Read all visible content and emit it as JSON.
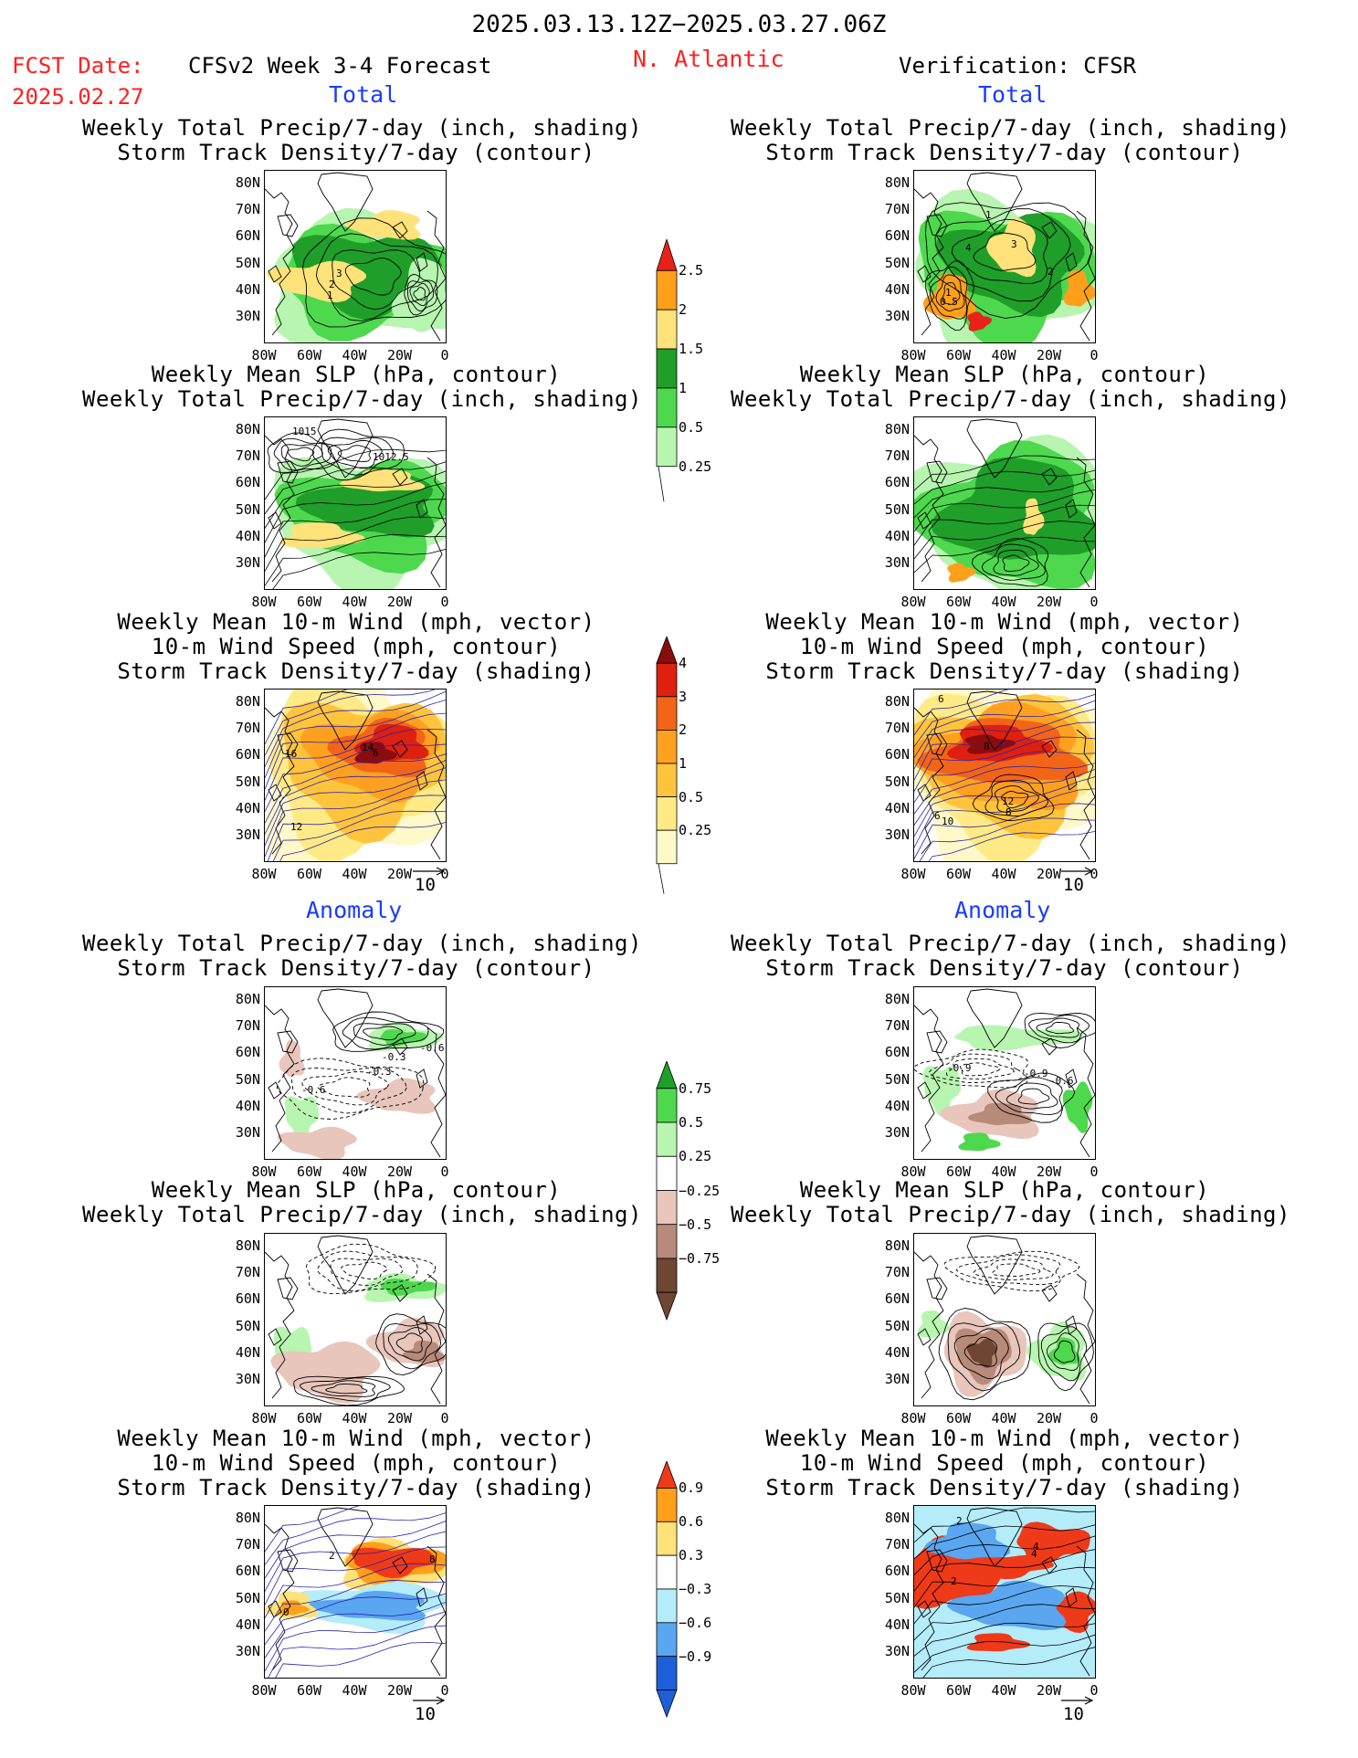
{
  "header": {
    "date_range": "2025.03.13.12Z−2025.03.27.06Z",
    "fcst_label": "FCST Date:",
    "fcst_date": "2025.02.27",
    "model_title": "CFSv2 Week 3-4 Forecast",
    "region": "N. Atlantic",
    "verification": "Verification: CFSR"
  },
  "sections": {
    "total": "Total",
    "anomaly": "Anomaly"
  },
  "titles": {
    "precip_storm": [
      "Weekly Total Precip/7-day (inch, shading)",
      "Storm Track Density/7-day (contour)"
    ],
    "slp_precip": [
      "Weekly Mean SLP (hPa, contour)",
      "Weekly Total Precip/7-day (inch, shading)"
    ],
    "wind_storm": [
      "Weekly Mean 10-m Wind (mph, vector)",
      "10-m Wind Speed (mph, contour)",
      "Storm Track Density/7-day (shading)"
    ]
  },
  "axes": {
    "lat_labels": [
      "80N",
      "70N",
      "60N",
      "50N",
      "40N",
      "30N"
    ],
    "lon_labels": [
      "80W",
      "60W",
      "40W",
      "20W",
      "0"
    ]
  },
  "vector_ref": "10",
  "colorbars": {
    "precip_total": {
      "labels": [
        "2.5",
        "2",
        "1.5",
        "1",
        "0.5",
        "0.25"
      ],
      "colors": [
        "#e8221a",
        "#ff9f1a",
        "#ffe27a",
        "#1f9e2a",
        "#4ed84e",
        "#b8f5b0"
      ]
    },
    "storm_total": {
      "labels": [
        "4",
        "3",
        "2",
        "1",
        "0.5",
        "0.25"
      ],
      "colors": [
        "#8b0c0c",
        "#dd2010",
        "#f26418",
        "#ffa020",
        "#ffc43c",
        "#ffea86",
        "#fff8c8"
      ]
    },
    "precip_anom": {
      "labels": [
        "0.75",
        "0.5",
        "0.25",
        "−0.25",
        "−0.5",
        "−0.75"
      ],
      "colors": [
        "#1f9e2a",
        "#4ed84e",
        "#b8f5b0",
        "#ffffff",
        "#e8c6bc",
        "#b88a7a",
        "#6e4632"
      ]
    },
    "storm_anom": {
      "labels": [
        "0.9",
        "0.6",
        "0.3",
        "−0.3",
        "−0.6",
        "−0.9"
      ],
      "colors": [
        "#ee3a18",
        "#ff9f1a",
        "#ffe27a",
        "#ffffff",
        "#b4ecfa",
        "#5aa6f0",
        "#1e5fd8"
      ]
    }
  },
  "contour_labels": {
    "p1": [
      "3",
      "2",
      "1"
    ],
    "v1": [
      "1",
      "3",
      "4",
      "2",
      "1",
      "0.5"
    ],
    "p2": [
      "1015",
      "1012.5"
    ],
    "p3": [
      "16",
      "12",
      "14",
      "6"
    ],
    "v3": [
      "6",
      "8",
      "12",
      "8",
      "10",
      "6"
    ],
    "p4": [
      "-0.6",
      "-0.3",
      "-0.6",
      "-0.3"
    ],
    "v4": [
      "-0.9",
      "-0.9",
      "-0.6"
    ],
    "p6": [
      "2",
      "8",
      "0"
    ],
    "v6": [
      "2",
      "4",
      "2",
      "4"
    ]
  }
}
